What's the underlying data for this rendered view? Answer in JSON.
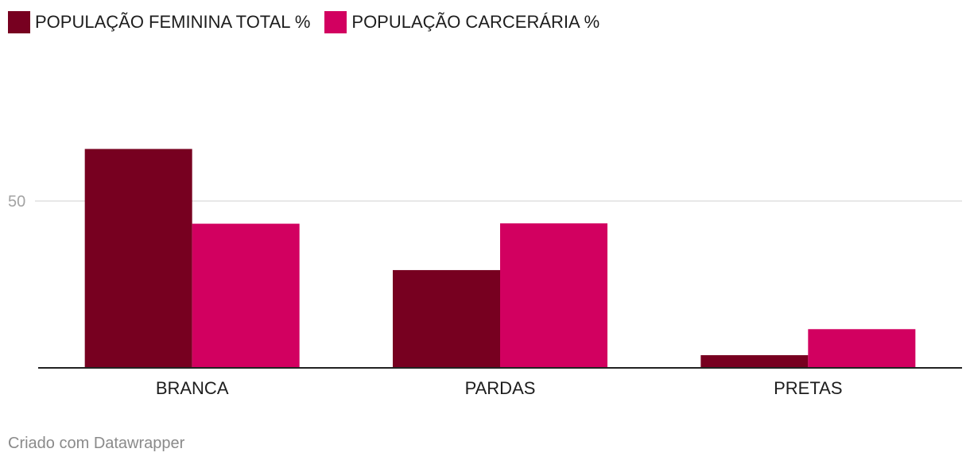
{
  "chart_data": {
    "type": "bar",
    "categories": [
      "BRANCA",
      "PARDAS",
      "PRETAS"
    ],
    "series": [
      {
        "name": "POPULAÇÃO FEMININA TOTAL %",
        "values": [
          65.6,
          29.3,
          3.8
        ],
        "color": "#770020"
      },
      {
        "name": "POPULAÇÃO CARCERÁRIA %",
        "values": [
          43.2,
          43.3,
          11.6
        ],
        "color": "#d20060"
      }
    ],
    "yticks": [
      50
    ],
    "ylim": [
      0,
      90
    ],
    "grid": true,
    "legend_position": "top-left"
  },
  "footer": {
    "credit": "Criado com Datawrapper"
  },
  "colors": {
    "gridline": "#e0e0e0",
    "baseline": "#222222",
    "tick_label": "#a3a3a3",
    "category_label": "#1d1d1d"
  }
}
